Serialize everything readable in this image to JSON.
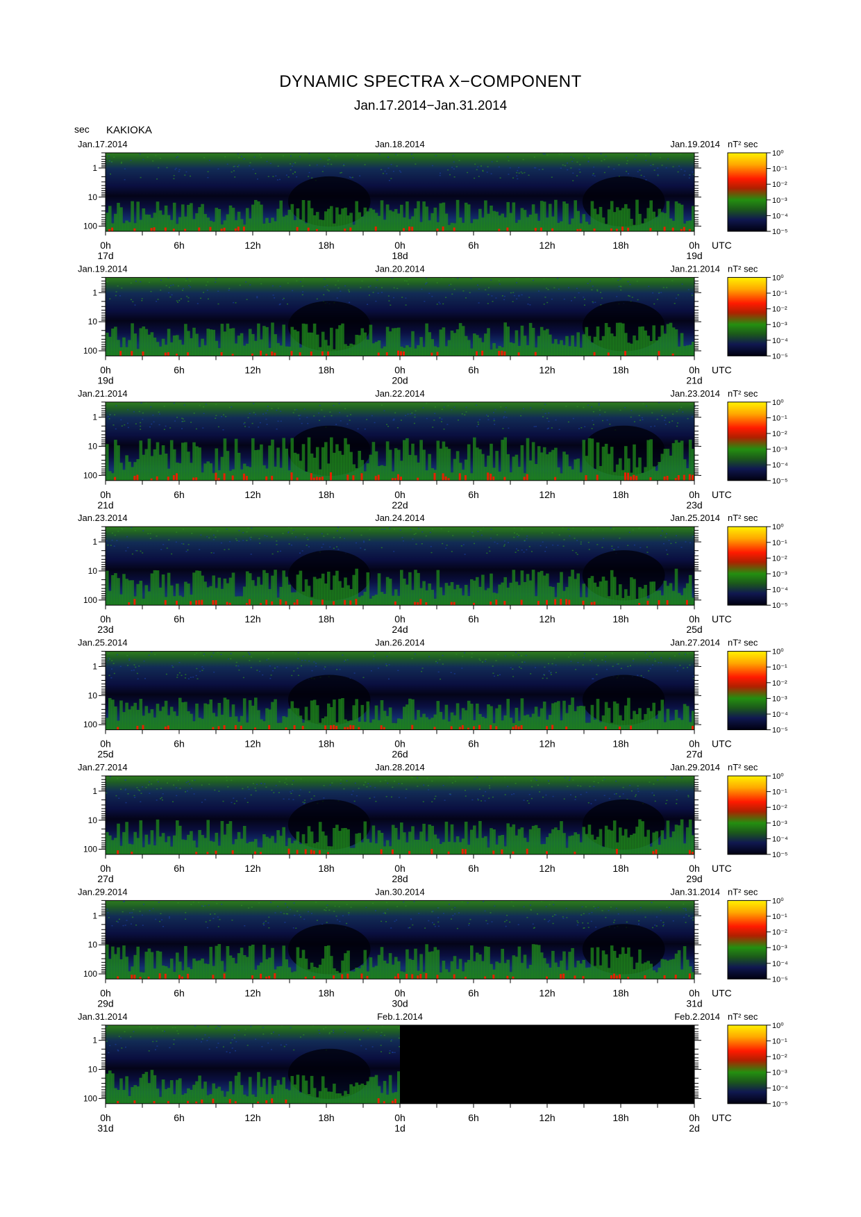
{
  "title": "DYNAMIC SPECTRA X−COMPONENT",
  "subtitle": "Jan.17.2014−Jan.31.2014",
  "station_unit": "sec",
  "station": "KAKIOKA",
  "colors": {
    "background_dark": "#000000",
    "low_power": "#0a0a3c",
    "mid_power": "#1a7a1a",
    "high_power": "#ff2000",
    "peak_power": "#ffd800"
  },
  "chart_data": [
    {
      "type": "heatmap",
      "date_left": "Jan.17.2014",
      "date_mid": "Jan.18.2014",
      "date_right": "Jan.19.2014",
      "day_left": "17d",
      "day_mid": "18d",
      "day_right": "19d",
      "x_ticks": [
        "0h",
        "6h",
        "12h",
        "18h",
        "0h",
        "6h",
        "12h",
        "18h",
        "0h"
      ],
      "x_unit": "UTC",
      "y_ticks": [
        "1",
        "10",
        "100"
      ],
      "y_unit": "sec",
      "ylim": [
        0.3,
        150
      ],
      "colorbar_unit": "nT² sec",
      "colorbar_ticks": [
        "10⁰",
        "10⁻¹",
        "10⁻²",
        "10⁻³",
        "10⁻⁴",
        "10⁻⁵"
      ],
      "activity": 0.35,
      "data_coverage": 1.0
    },
    {
      "type": "heatmap",
      "date_left": "Jan.19.2014",
      "date_mid": "Jan.20.2014",
      "date_right": "Jan.21.2014",
      "day_left": "19d",
      "day_mid": "20d",
      "day_right": "21d",
      "x_ticks": [
        "0h",
        "6h",
        "12h",
        "18h",
        "0h",
        "6h",
        "12h",
        "18h",
        "0h"
      ],
      "x_unit": "UTC",
      "y_ticks": [
        "1",
        "10",
        "100"
      ],
      "y_unit": "sec",
      "ylim": [
        0.3,
        150
      ],
      "colorbar_unit": "nT² sec",
      "colorbar_ticks": [
        "10⁰",
        "10⁻¹",
        "10⁻²",
        "10⁻³",
        "10⁻⁴",
        "10⁻⁵"
      ],
      "activity": 0.4,
      "data_coverage": 1.0
    },
    {
      "type": "heatmap",
      "date_left": "Jan.21.2014",
      "date_mid": "Jan.22.2014",
      "date_right": "Jan.23.2014",
      "day_left": "21d",
      "day_mid": "22d",
      "day_right": "23d",
      "x_ticks": [
        "0h",
        "6h",
        "12h",
        "18h",
        "0h",
        "6h",
        "12h",
        "18h",
        "0h"
      ],
      "x_unit": "UTC",
      "y_ticks": [
        "1",
        "10",
        "100"
      ],
      "y_unit": "sec",
      "ylim": [
        0.3,
        150
      ],
      "colorbar_unit": "nT² sec",
      "colorbar_ticks": [
        "10⁰",
        "10⁻¹",
        "10⁻²",
        "10⁻³",
        "10⁻⁴",
        "10⁻⁵"
      ],
      "activity": 0.75,
      "data_coverage": 1.0
    },
    {
      "type": "heatmap",
      "date_left": "Jan.23.2014",
      "date_mid": "Jan.24.2014",
      "date_right": "Jan.25.2014",
      "day_left": "23d",
      "day_mid": "24d",
      "day_right": "25d",
      "x_ticks": [
        "0h",
        "6h",
        "12h",
        "18h",
        "0h",
        "6h",
        "12h",
        "18h",
        "0h"
      ],
      "x_unit": "UTC",
      "y_ticks": [
        "1",
        "10",
        "100"
      ],
      "y_unit": "sec",
      "ylim": [
        0.3,
        150
      ],
      "colorbar_unit": "nT² sec",
      "colorbar_ticks": [
        "10⁰",
        "10⁻¹",
        "10⁻²",
        "10⁻³",
        "10⁻⁴",
        "10⁻⁵"
      ],
      "activity": 0.5,
      "data_coverage": 1.0
    },
    {
      "type": "heatmap",
      "date_left": "Jan.25.2014",
      "date_mid": "Jan.26.2014",
      "date_right": "Jan.27.2014",
      "day_left": "25d",
      "day_mid": "26d",
      "day_right": "27d",
      "x_ticks": [
        "0h",
        "6h",
        "12h",
        "18h",
        "0h",
        "6h",
        "12h",
        "18h",
        "0h"
      ],
      "x_unit": "UTC",
      "y_ticks": [
        "1",
        "10",
        "100"
      ],
      "y_unit": "sec",
      "ylim": [
        0.3,
        150
      ],
      "colorbar_unit": "nT² sec",
      "colorbar_ticks": [
        "10⁰",
        "10⁻¹",
        "10⁻²",
        "10⁻³",
        "10⁻⁴",
        "10⁻⁵"
      ],
      "activity": 0.35,
      "data_coverage": 1.0
    },
    {
      "type": "heatmap",
      "date_left": "Jan.27.2014",
      "date_mid": "Jan.28.2014",
      "date_right": "Jan.29.2014",
      "day_left": "27d",
      "day_mid": "28d",
      "day_right": "29d",
      "x_ticks": [
        "0h",
        "6h",
        "12h",
        "18h",
        "0h",
        "6h",
        "12h",
        "18h",
        "0h"
      ],
      "x_unit": "UTC",
      "y_ticks": [
        "1",
        "10",
        "100"
      ],
      "y_unit": "sec",
      "ylim": [
        0.3,
        150
      ],
      "colorbar_unit": "nT² sec",
      "colorbar_ticks": [
        "10⁰",
        "10⁻¹",
        "10⁻²",
        "10⁻³",
        "10⁻⁴",
        "10⁻⁵"
      ],
      "activity": 0.45,
      "data_coverage": 1.0
    },
    {
      "type": "heatmap",
      "date_left": "Jan.29.2014",
      "date_mid": "Jan.30.2014",
      "date_right": "Jan.31.2014",
      "day_left": "29d",
      "day_mid": "30d",
      "day_right": "31d",
      "x_ticks": [
        "0h",
        "6h",
        "12h",
        "18h",
        "0h",
        "6h",
        "12h",
        "18h",
        "0h"
      ],
      "x_unit": "UTC",
      "y_ticks": [
        "1",
        "10",
        "100"
      ],
      "y_unit": "sec",
      "ylim": [
        0.3,
        150
      ],
      "colorbar_unit": "nT² sec",
      "colorbar_ticks": [
        "10⁰",
        "10⁻¹",
        "10⁻²",
        "10⁻³",
        "10⁻⁴",
        "10⁻⁵"
      ],
      "activity": 0.45,
      "data_coverage": 1.0
    },
    {
      "type": "heatmap",
      "date_left": "Jan.31.2014",
      "date_mid": "Feb.1.2014",
      "date_right": "Feb.2.2014",
      "day_left": "31d",
      "day_mid": "1d",
      "day_right": "2d",
      "x_ticks": [
        "0h",
        "6h",
        "12h",
        "18h",
        "0h",
        "6h",
        "12h",
        "18h",
        "0h"
      ],
      "x_unit": "UTC",
      "y_ticks": [
        "1",
        "10",
        "100"
      ],
      "y_unit": "sec",
      "ylim": [
        0.3,
        150
      ],
      "colorbar_unit": "nT² sec",
      "colorbar_ticks": [
        "10⁰",
        "10⁻¹",
        "10⁻²",
        "10⁻³",
        "10⁻⁴",
        "10⁻⁵"
      ],
      "activity": 0.4,
      "data_coverage": 0.5
    }
  ]
}
